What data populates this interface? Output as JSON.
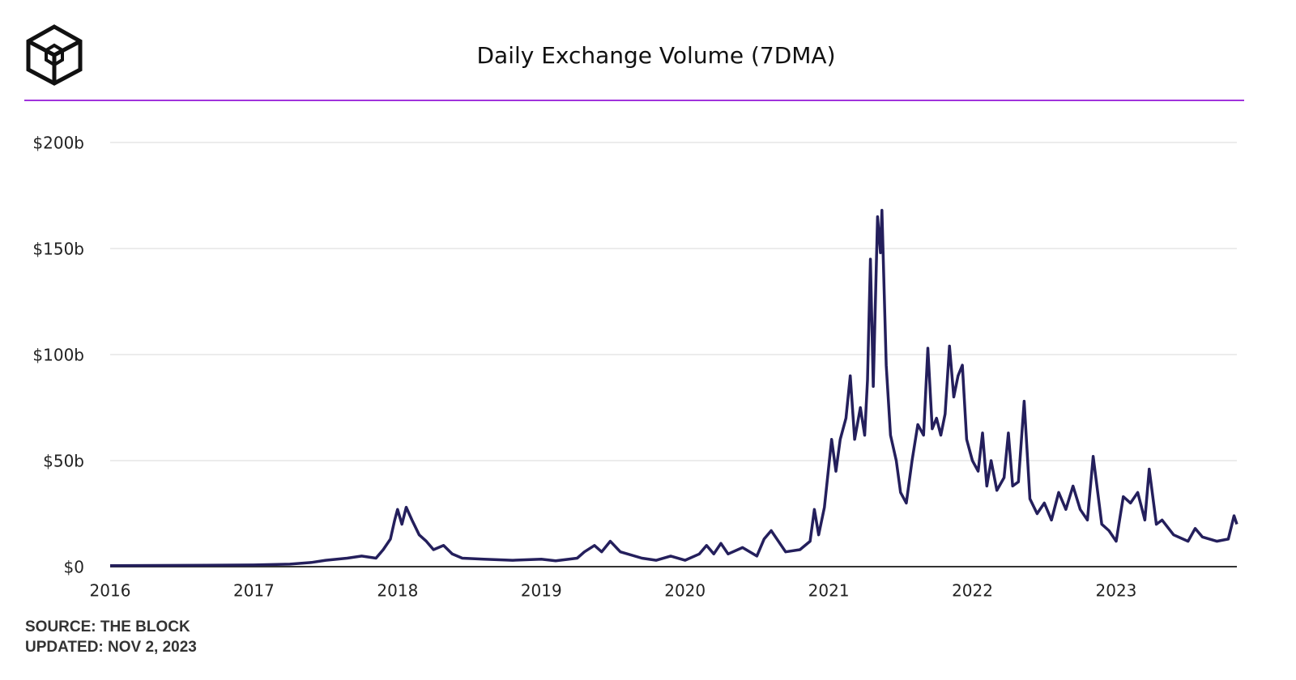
{
  "chart_data": {
    "type": "line",
    "title": "Daily Exchange Volume (7DMA)",
    "source": "SOURCE: THE BLOCK",
    "updated": "UPDATED: NOV 2, 2023",
    "xlim": [
      2016,
      2023.84
    ],
    "xticks": [
      2016,
      2017,
      2018,
      2019,
      2020,
      2021,
      2022,
      2023
    ],
    "ylim": [
      0,
      200
    ],
    "yticks": [
      {
        "value": 0,
        "label": "$0"
      },
      {
        "value": 50,
        "label": "$50b"
      },
      {
        "value": 100,
        "label": "$100b"
      },
      {
        "value": 150,
        "label": "$150b"
      },
      {
        "value": 200,
        "label": "$200b"
      }
    ],
    "grid": true,
    "x": [
      2016.0,
      2016.5,
      2017.0,
      2017.25,
      2017.4,
      2017.5,
      2017.65,
      2017.75,
      2017.85,
      2017.9,
      2017.95,
      2017.98,
      2018.0,
      2018.03,
      2018.06,
      2018.1,
      2018.15,
      2018.2,
      2018.25,
      2018.32,
      2018.38,
      2018.45,
      2018.6,
      2018.8,
      2019.0,
      2019.1,
      2019.25,
      2019.3,
      2019.37,
      2019.42,
      2019.48,
      2019.55,
      2019.7,
      2019.8,
      2019.9,
      2020.0,
      2020.1,
      2020.15,
      2020.2,
      2020.25,
      2020.3,
      2020.4,
      2020.5,
      2020.55,
      2020.6,
      2020.7,
      2020.8,
      2020.87,
      2020.9,
      2020.93,
      2020.97,
      2021.02,
      2021.05,
      2021.08,
      2021.12,
      2021.15,
      2021.18,
      2021.22,
      2021.25,
      2021.27,
      2021.29,
      2021.31,
      2021.34,
      2021.36,
      2021.37,
      2021.4,
      2021.43,
      2021.47,
      2021.5,
      2021.54,
      2021.58,
      2021.62,
      2021.66,
      2021.69,
      2021.72,
      2021.75,
      2021.78,
      2021.81,
      2021.84,
      2021.87,
      2021.9,
      2021.93,
      2021.96,
      2022.0,
      2022.04,
      2022.07,
      2022.1,
      2022.13,
      2022.17,
      2022.22,
      2022.25,
      2022.28,
      2022.32,
      2022.36,
      2022.4,
      2022.45,
      2022.5,
      2022.55,
      2022.6,
      2022.65,
      2022.7,
      2022.75,
      2022.8,
      2022.84,
      2022.9,
      2022.95,
      2023.0,
      2023.05,
      2023.1,
      2023.15,
      2023.2,
      2023.23,
      2023.28,
      2023.32,
      2023.4,
      2023.5,
      2023.55,
      2023.6,
      2023.7,
      2023.78,
      2023.82,
      2023.84
    ],
    "series": [
      {
        "name": "Daily Exchange Volume",
        "color": "#241f5c",
        "values": [
          0.5,
          0.6,
          0.8,
          1.2,
          2,
          3,
          4,
          5,
          4,
          8,
          13,
          22,
          27,
          20,
          28,
          22,
          15,
          12,
          8,
          10,
          6,
          4,
          3.5,
          3,
          3.5,
          2.8,
          4,
          7,
          10,
          7,
          12,
          7,
          4,
          3,
          5,
          3,
          6,
          10,
          6,
          11,
          6,
          9,
          5,
          13,
          17,
          7,
          8,
          12,
          27,
          15,
          28,
          60,
          45,
          60,
          70,
          90,
          60,
          75,
          62,
          88,
          145,
          85,
          165,
          148,
          168,
          95,
          62,
          50,
          35,
          30,
          50,
          67,
          62,
          103,
          65,
          70,
          62,
          72,
          104,
          80,
          90,
          95,
          60,
          50,
          45,
          63,
          38,
          50,
          36,
          42,
          63,
          38,
          40,
          78,
          32,
          25,
          30,
          22,
          35,
          27,
          38,
          27,
          22,
          52,
          20,
          17,
          12,
          33,
          30,
          35,
          22,
          46,
          20,
          22,
          15,
          12,
          18,
          14,
          12,
          13,
          24,
          20
        ]
      }
    ]
  }
}
